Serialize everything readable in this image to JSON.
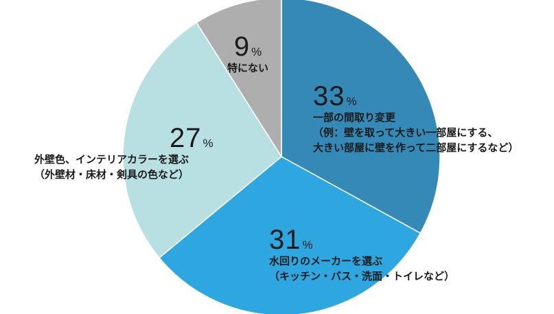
{
  "chart_data": {
    "type": "pie",
    "unit": "%",
    "slices": [
      {
        "value": 33,
        "label": "一部の間取り変更",
        "detail": [
          "（例：壁を取って大きい一部屋にする、",
          "大きい部屋に壁を作って二部屋にするなど）"
        ],
        "color": "#3589b6"
      },
      {
        "value": 31,
        "label": "水回りのメーカーを選ぶ",
        "detail": [
          "（キッチン・バス・洗面・トイレなど）"
        ],
        "color": "#2ea6df"
      },
      {
        "value": 27,
        "label": "外壁色、インテリアカラーを選ぶ",
        "detail": [
          "（外壁材・床材・剣具の色など）"
        ],
        "color": "#b8dfe2"
      },
      {
        "value": 9,
        "label": "特にない",
        "detail": [],
        "color": "#aeaeae"
      }
    ]
  }
}
